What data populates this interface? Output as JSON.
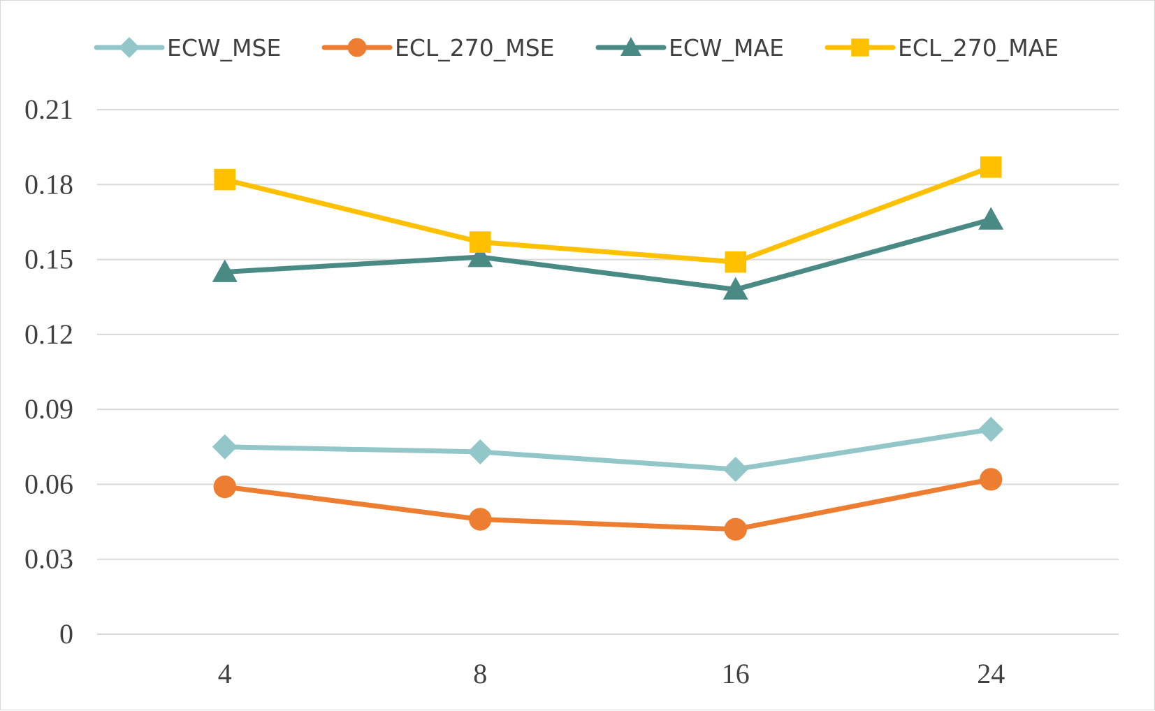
{
  "chart_data": {
    "type": "line",
    "title": "",
    "xlabel": "",
    "ylabel": "",
    "categories": [
      "4",
      "8",
      "16",
      "24"
    ],
    "y_ticks": [
      "0",
      "0.03",
      "0.06",
      "0.09",
      "0.12",
      "0.15",
      "0.18",
      "0.21"
    ],
    "ylim": [
      0,
      0.21
    ],
    "grid": "horizontal",
    "legend_position": "top",
    "series": [
      {
        "name": "ECW_MSE",
        "values": [
          0.075,
          0.073,
          0.066,
          0.082
        ],
        "color": "#93c6c8",
        "marker": "diamond"
      },
      {
        "name": "ECL_270_MSE",
        "values": [
          0.059,
          0.046,
          0.042,
          0.062
        ],
        "color": "#ed7d31",
        "marker": "circle"
      },
      {
        "name": "ECW_MAE",
        "values": [
          0.145,
          0.151,
          0.138,
          0.166
        ],
        "color": "#4a8a84",
        "marker": "triangle"
      },
      {
        "name": "ECL_270_MAE",
        "values": [
          0.182,
          0.157,
          0.149,
          0.187
        ],
        "color": "#ffc000",
        "marker": "square"
      }
    ]
  }
}
